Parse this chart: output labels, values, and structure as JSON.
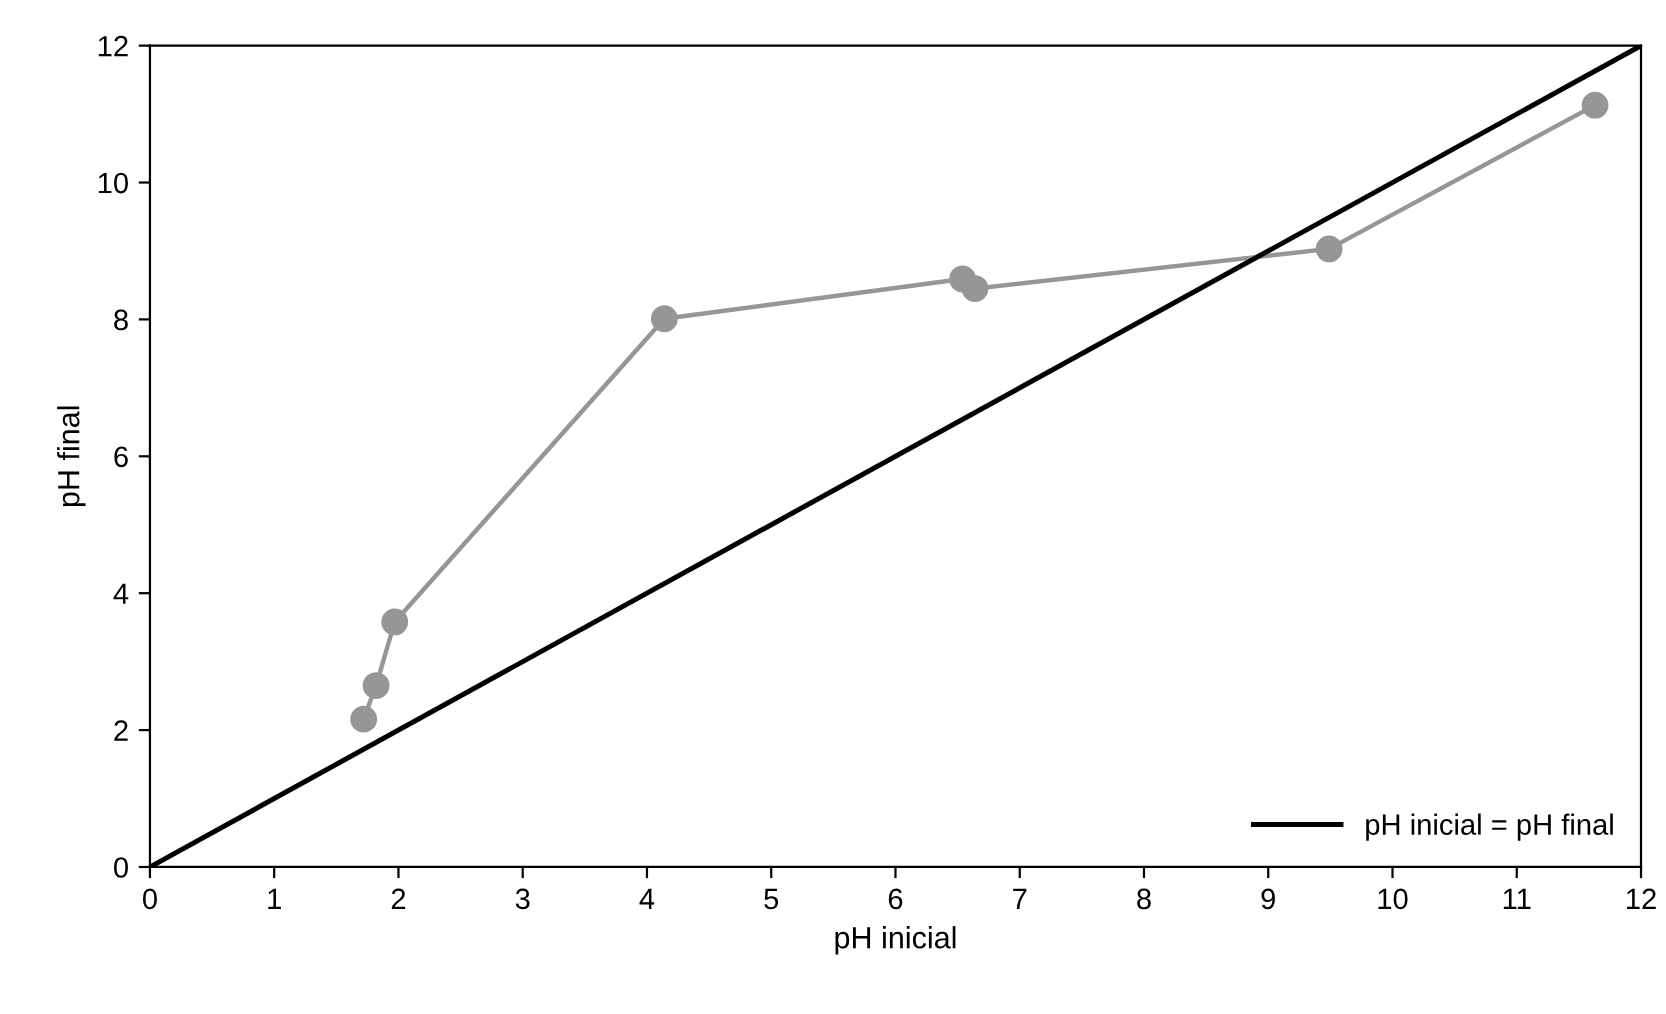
{
  "chart_data": {
    "type": "line",
    "xlabel": "pH inicial",
    "ylabel": "pH final",
    "series": [
      {
        "color": "#969696",
        "x": [
          1.72,
          1.82,
          1.97,
          4.14,
          6.54,
          6.64,
          9.49,
          11.63
        ],
        "values": [
          2.16,
          2.65,
          3.58,
          8.01,
          8.59,
          8.45,
          9.03,
          11.13
        ],
        "marker": "circle"
      },
      {
        "name": "pH inicial = pH final",
        "color": "#000000",
        "x": [
          0,
          12
        ],
        "values": [
          0,
          12
        ],
        "marker": "none"
      }
    ],
    "xlim": [
      0,
      12
    ],
    "ylim": [
      0,
      12
    ],
    "xticks": [
      0,
      1,
      2,
      3,
      4,
      5,
      6,
      7,
      8,
      9,
      10,
      11,
      12
    ],
    "yticks": [
      0,
      2,
      4,
      6,
      8,
      10,
      12
    ],
    "grid": false,
    "legend": "bottom right"
  }
}
